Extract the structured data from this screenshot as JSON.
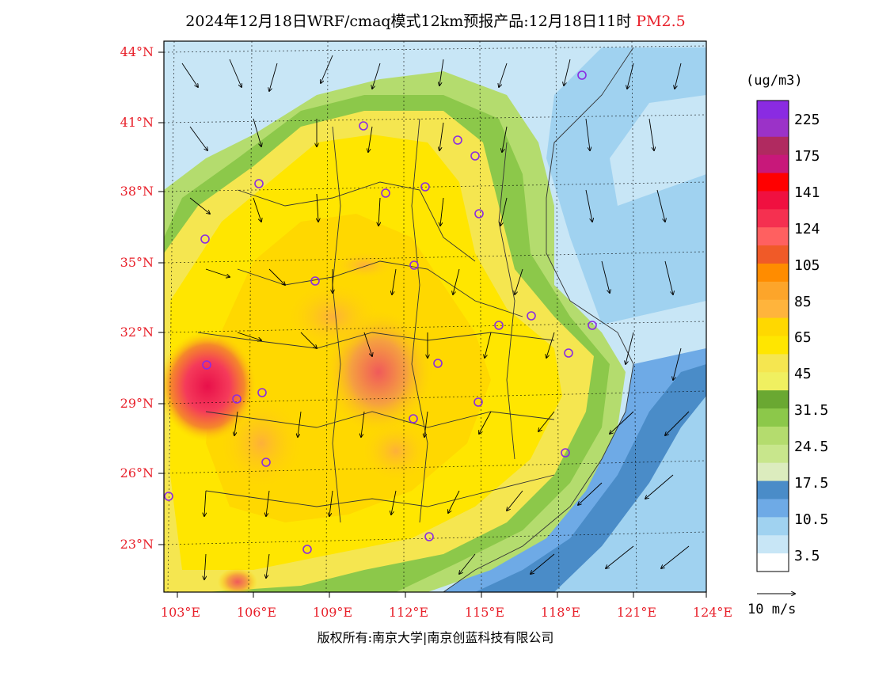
{
  "title": {
    "main": "2024年12月18日WRF/cmaq模式12km预报产品:12月18日11时",
    "species": "PM2.5"
  },
  "map": {
    "lat_range": [
      21,
      44.5
    ],
    "lon_range": [
      102.5,
      124
    ],
    "lat_ticks": [
      "44°N",
      "41°N",
      "38°N",
      "35°N",
      "32°N",
      "29°N",
      "26°N",
      "23°N"
    ],
    "lon_ticks": [
      "103°E",
      "106°E",
      "109°E",
      "112°E",
      "115°E",
      "118°E",
      "121°E",
      "124°E"
    ],
    "city_markers": "purple circles at major cities"
  },
  "colorbar": {
    "unit": "(ug/m3)",
    "labels": [
      "225",
      "175",
      "141",
      "124",
      "105",
      "85",
      "65",
      "45",
      "31.5",
      "24.5",
      "17.5",
      "10.5",
      "3.5"
    ],
    "colors": [
      "#8a2be2",
      "#9b32c8",
      "#b02a60",
      "#c8187a",
      "#ff0000",
      "#f01040",
      "#f53050",
      "#ff6060",
      "#f05a28",
      "#ff8c00",
      "#fda52a",
      "#ffb43c",
      "#ffd800",
      "#ffe600",
      "#f5e650",
      "#f0f060",
      "#6aa832",
      "#8cc84a",
      "#b4dc6e",
      "#c8e68c",
      "#dcecbe",
      "#4a8cc8",
      "#6eaae6",
      "#a0d2f0",
      "#c8e6f6",
      "#ffffff"
    ]
  },
  "wind": {
    "reference": "10 m/s"
  },
  "footer": {
    "copyright": "版权所有:南京大学|南京创蓝科技有限公司"
  }
}
